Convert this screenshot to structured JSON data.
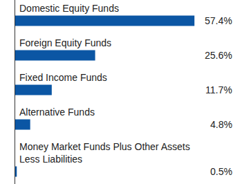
{
  "chart_data": {
    "type": "bar",
    "orientation": "horizontal",
    "categories": [
      "Domestic Equity Funds",
      "Foreign Equity Funds",
      "Fixed Income Funds",
      "Alternative Funds",
      "Money Market Funds Plus Other Assets Less Liabilities"
    ],
    "values": [
      57.4,
      25.6,
      11.7,
      4.8,
      0.5
    ],
    "value_labels": [
      "57.4%",
      "25.6%",
      "11.7%",
      "4.8%",
      "0.5%"
    ],
    "color": "#0b56a4",
    "xlim": [
      0,
      70
    ],
    "data_labels": true,
    "tick_labels": false,
    "grid": false
  }
}
